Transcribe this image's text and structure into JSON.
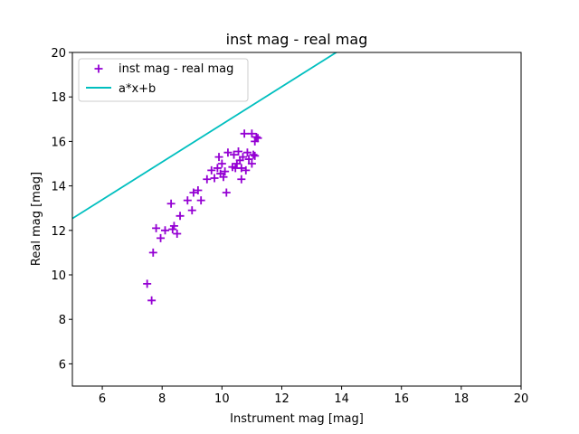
{
  "chart_data": {
    "type": "scatter",
    "title": "inst mag - real mag",
    "xlabel": "Instrument mag [mag]",
    "ylabel": "Real mag [mag]",
    "xlim": [
      5,
      20
    ],
    "ylim": [
      5,
      20
    ],
    "xticks": [
      6,
      8,
      10,
      12,
      14,
      16,
      18,
      20
    ],
    "yticks": [
      6,
      8,
      10,
      12,
      14,
      16,
      18,
      20
    ],
    "grid": false,
    "legend_position": "top-left",
    "series": [
      {
        "name": "inst mag - real mag",
        "kind": "scatter",
        "marker": "plus",
        "color": "#9400d3",
        "points": [
          [
            7.5,
            9.6
          ],
          [
            7.65,
            8.85
          ],
          [
            7.7,
            11.0
          ],
          [
            7.8,
            12.1
          ],
          [
            7.95,
            11.65
          ],
          [
            8.1,
            12.0
          ],
          [
            8.3,
            13.2
          ],
          [
            8.35,
            12.05
          ],
          [
            8.4,
            12.2
          ],
          [
            8.5,
            11.85
          ],
          [
            8.6,
            12.65
          ],
          [
            8.85,
            13.35
          ],
          [
            9.0,
            12.9
          ],
          [
            9.05,
            13.7
          ],
          [
            9.2,
            13.8
          ],
          [
            9.3,
            13.35
          ],
          [
            9.5,
            14.3
          ],
          [
            9.65,
            14.7
          ],
          [
            9.75,
            14.35
          ],
          [
            9.85,
            14.8
          ],
          [
            9.9,
            15.3
          ],
          [
            9.95,
            14.55
          ],
          [
            10.0,
            15.0
          ],
          [
            10.05,
            14.4
          ],
          [
            10.1,
            14.65
          ],
          [
            10.15,
            13.7
          ],
          [
            10.2,
            15.5
          ],
          [
            10.35,
            14.85
          ],
          [
            10.4,
            15.4
          ],
          [
            10.45,
            14.8
          ],
          [
            10.5,
            15.0
          ],
          [
            10.55,
            15.55
          ],
          [
            10.6,
            15.15
          ],
          [
            10.65,
            14.3
          ],
          [
            10.65,
            14.8
          ],
          [
            10.7,
            15.3
          ],
          [
            10.75,
            16.35
          ],
          [
            10.8,
            14.7
          ],
          [
            10.85,
            15.5
          ],
          [
            10.9,
            15.2
          ],
          [
            11.0,
            16.35
          ],
          [
            11.0,
            15.0
          ],
          [
            11.05,
            15.4
          ],
          [
            11.1,
            16.0
          ],
          [
            11.1,
            15.35
          ],
          [
            11.15,
            16.2
          ],
          [
            11.2,
            16.15
          ]
        ]
      },
      {
        "name": "a*x+b",
        "kind": "line",
        "color": "#00bfbf",
        "slope": 0.8467,
        "intercept": 8.3
      }
    ]
  }
}
